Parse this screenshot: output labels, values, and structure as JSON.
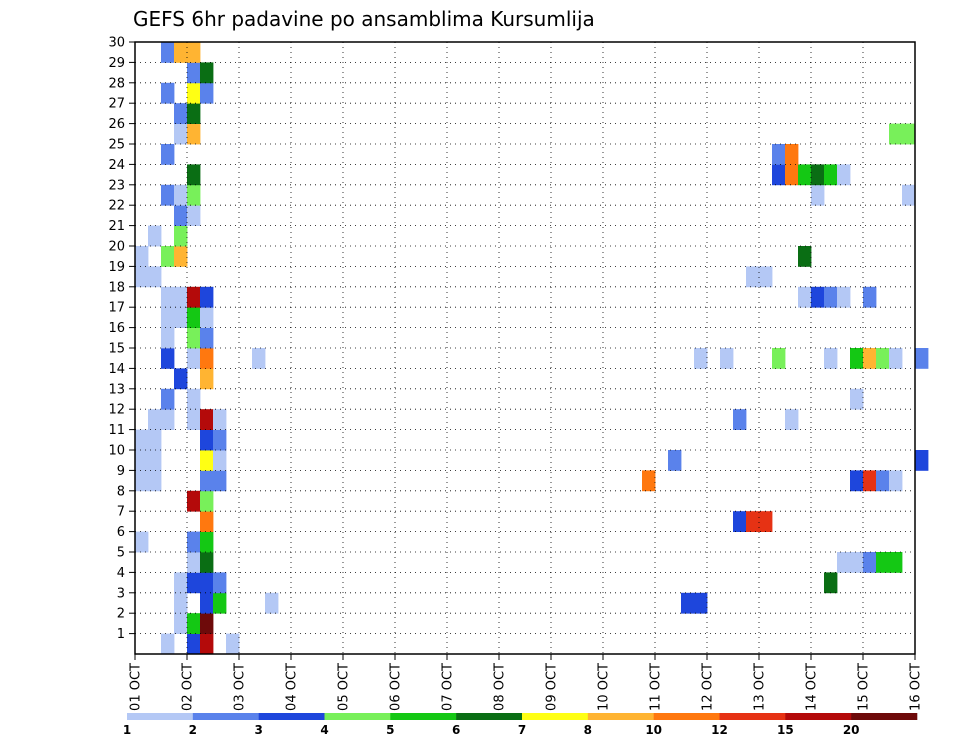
{
  "chart_data": {
    "type": "heatmap",
    "title": "GEFS 6hr padavine po ansamblima Kursumlija",
    "xlabel": "",
    "ylabel": "",
    "x_tick_labels": [
      "01 OCT",
      "02 OCT",
      "03 OCT",
      "04 OCT",
      "05 OCT",
      "06 OCT",
      "07 OCT",
      "08 OCT",
      "09 OCT",
      "10 OCT",
      "11 OCT",
      "12 OCT",
      "13 OCT",
      "14 OCT",
      "15 OCT",
      "16 OCT"
    ],
    "y_tick_labels": [
      "1",
      "2",
      "3",
      "4",
      "5",
      "6",
      "7",
      "8",
      "9",
      "10",
      "11",
      "12",
      "13",
      "14",
      "15",
      "16",
      "17",
      "18",
      "19",
      "20",
      "21",
      "22",
      "23",
      "24",
      "25",
      "26",
      "27",
      "28",
      "29",
      "30"
    ],
    "xlim_days": [
      1,
      16
    ],
    "steps_per_day": 4,
    "ylim": [
      0,
      30
    ],
    "grid": true,
    "colorbar": {
      "position": "bottom",
      "labels": [
        "1",
        "2",
        "3",
        "4",
        "5",
        "6",
        "7",
        "8",
        "10",
        "12",
        "15",
        "20"
      ],
      "colors": [
        "#b4c8f5",
        "#5a82eb",
        "#1e46dc",
        "#78f05a",
        "#14c814",
        "#0a6e14",
        "#ffff14",
        "#ffb432",
        "#ff780f",
        "#e63214",
        "#b40a0a",
        "#6e0a0a"
      ]
    },
    "value_scale_note": "cell value k = colour class index 1..12 of the colorbar",
    "cells": [
      [
        0,
        0.5,
        1
      ],
      [
        0,
        1,
        3
      ],
      [
        0,
        1.25,
        11
      ],
      [
        0,
        1.75,
        1
      ],
      [
        1,
        0.75,
        1
      ],
      [
        1,
        1,
        5
      ],
      [
        1,
        1.25,
        12
      ],
      [
        2,
        0.75,
        1
      ],
      [
        2,
        1.25,
        3
      ],
      [
        2,
        1.5,
        5
      ],
      [
        2,
        2.5,
        1
      ],
      [
        2,
        10.5,
        3
      ],
      [
        2,
        10.75,
        3
      ],
      [
        3,
        0.75,
        1
      ],
      [
        3,
        1,
        3
      ],
      [
        3,
        1.25,
        3
      ],
      [
        3,
        1.5,
        2
      ],
      [
        3,
        13.25,
        6
      ],
      [
        4,
        1,
        1
      ],
      [
        4,
        1.25,
        6
      ],
      [
        4,
        13.5,
        1
      ],
      [
        4,
        13.75,
        1
      ],
      [
        4,
        14,
        2
      ],
      [
        4,
        14.25,
        5
      ],
      [
        4,
        14.5,
        5
      ],
      [
        5,
        0,
        1
      ],
      [
        5,
        1,
        2
      ],
      [
        5,
        1.25,
        5
      ],
      [
        6,
        1.25,
        9
      ],
      [
        6,
        11.5,
        3
      ],
      [
        6,
        11.75,
        10
      ],
      [
        6,
        12,
        10
      ],
      [
        7,
        1,
        11
      ],
      [
        7,
        1.25,
        4
      ],
      [
        8,
        0,
        1
      ],
      [
        8,
        0.25,
        1
      ],
      [
        8,
        1.25,
        2
      ],
      [
        8,
        1.5,
        2
      ],
      [
        8,
        9.75,
        9
      ],
      [
        8,
        13.75,
        3
      ],
      [
        8,
        14,
        10
      ],
      [
        8,
        14.25,
        2
      ],
      [
        8,
        14.5,
        1
      ],
      [
        9,
        0,
        1
      ],
      [
        9,
        0.25,
        1
      ],
      [
        9,
        1.25,
        7
      ],
      [
        9,
        1.5,
        1
      ],
      [
        9,
        10.25,
        2
      ],
      [
        9,
        15,
        3
      ],
      [
        10,
        0,
        1
      ],
      [
        10,
        0.25,
        1
      ],
      [
        10,
        1.25,
        3
      ],
      [
        10,
        1.5,
        2
      ],
      [
        11,
        0.25,
        1
      ],
      [
        11,
        0.5,
        1
      ],
      [
        11,
        1,
        1
      ],
      [
        11,
        1.25,
        11
      ],
      [
        11,
        1.5,
        1
      ],
      [
        11,
        11.5,
        2
      ],
      [
        11,
        12.5,
        1
      ],
      [
        12,
        0.5,
        2
      ],
      [
        12,
        1,
        1
      ],
      [
        12,
        13.75,
        1
      ],
      [
        13,
        0.75,
        3
      ],
      [
        13,
        1.25,
        8
      ],
      [
        14,
        0.5,
        3
      ],
      [
        14,
        1,
        1
      ],
      [
        14,
        1.25,
        9
      ],
      [
        14,
        2.25,
        1
      ],
      [
        14,
        10.75,
        1
      ],
      [
        14,
        11.25,
        1
      ],
      [
        14,
        12.25,
        4
      ],
      [
        14,
        13.25,
        1
      ],
      [
        14,
        13.75,
        5
      ],
      [
        14,
        14,
        8
      ],
      [
        14,
        14.25,
        4
      ],
      [
        14,
        14.5,
        1
      ],
      [
        14,
        15,
        2
      ],
      [
        15,
        0.5,
        1
      ],
      [
        15,
        1,
        4
      ],
      [
        15,
        1.25,
        2
      ],
      [
        16,
        0.5,
        1
      ],
      [
        16,
        0.75,
        1
      ],
      [
        16,
        1,
        5
      ],
      [
        16,
        1.25,
        1
      ],
      [
        17,
        0.5,
        1
      ],
      [
        17,
        0.75,
        1
      ],
      [
        17,
        1,
        11
      ],
      [
        17,
        1.25,
        3
      ],
      [
        17,
        12.75,
        1
      ],
      [
        17,
        13,
        3
      ],
      [
        17,
        13.25,
        2
      ],
      [
        17,
        13.5,
        1
      ],
      [
        17,
        14,
        2
      ],
      [
        18,
        0,
        1
      ],
      [
        18,
        0.25,
        1
      ],
      [
        18,
        11.75,
        1
      ],
      [
        18,
        12,
        1
      ],
      [
        19,
        0,
        1
      ],
      [
        19,
        0.5,
        4
      ],
      [
        19,
        0.75,
        8
      ],
      [
        19,
        12.75,
        6
      ],
      [
        20,
        0.25,
        1
      ],
      [
        20,
        0.75,
        4
      ],
      [
        21,
        0.75,
        2
      ],
      [
        21,
        1,
        1
      ],
      [
        22,
        0.5,
        2
      ],
      [
        22,
        0.75,
        1
      ],
      [
        22,
        1,
        4
      ],
      [
        22,
        13,
        1
      ],
      [
        22,
        14.75,
        1
      ],
      [
        23,
        1,
        6
      ],
      [
        23,
        12.25,
        3
      ],
      [
        23,
        12.5,
        9
      ],
      [
        23,
        12.75,
        5
      ],
      [
        23,
        13,
        6
      ],
      [
        23,
        13.25,
        5
      ],
      [
        23,
        13.5,
        1
      ],
      [
        24,
        0.5,
        2
      ],
      [
        24,
        12.25,
        2
      ],
      [
        24,
        12.5,
        9
      ],
      [
        25,
        0.75,
        1
      ],
      [
        25,
        1,
        8
      ],
      [
        25,
        14.5,
        4
      ],
      [
        25,
        14.75,
        4
      ],
      [
        26,
        0.75,
        2
      ],
      [
        26,
        1,
        6
      ],
      [
        27,
        0.5,
        2
      ],
      [
        27,
        1,
        7
      ],
      [
        27,
        1.25,
        2
      ],
      [
        28,
        1,
        2
      ],
      [
        28,
        1.25,
        6
      ],
      [
        29,
        0.5,
        2
      ],
      [
        29,
        0.75,
        8
      ],
      [
        29,
        1,
        8
      ]
    ]
  }
}
